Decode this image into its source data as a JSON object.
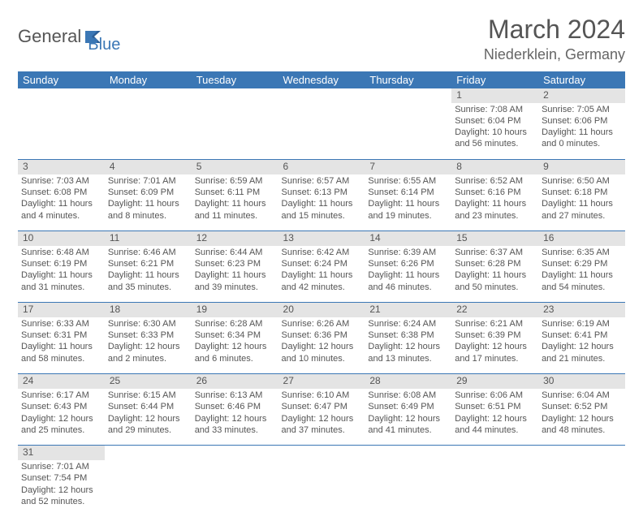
{
  "logo": {
    "part1": "General",
    "part2": "Blue"
  },
  "title": "March 2024",
  "location": "Niederklein, Germany",
  "colors": {
    "headerBg": "#3b77b5",
    "headerText": "#ffffff",
    "dayStripBg": "#e4e4e4",
    "bodyText": "#555555",
    "rowBorder": "#3b77b5"
  },
  "weekdays": [
    "Sunday",
    "Monday",
    "Tuesday",
    "Wednesday",
    "Thursday",
    "Friday",
    "Saturday"
  ],
  "weeks": [
    [
      null,
      null,
      null,
      null,
      null,
      {
        "day": "1",
        "sunrise": "Sunrise: 7:08 AM",
        "sunset": "Sunset: 6:04 PM",
        "daylight": "Daylight: 10 hours and 56 minutes."
      },
      {
        "day": "2",
        "sunrise": "Sunrise: 7:05 AM",
        "sunset": "Sunset: 6:06 PM",
        "daylight": "Daylight: 11 hours and 0 minutes."
      }
    ],
    [
      {
        "day": "3",
        "sunrise": "Sunrise: 7:03 AM",
        "sunset": "Sunset: 6:08 PM",
        "daylight": "Daylight: 11 hours and 4 minutes."
      },
      {
        "day": "4",
        "sunrise": "Sunrise: 7:01 AM",
        "sunset": "Sunset: 6:09 PM",
        "daylight": "Daylight: 11 hours and 8 minutes."
      },
      {
        "day": "5",
        "sunrise": "Sunrise: 6:59 AM",
        "sunset": "Sunset: 6:11 PM",
        "daylight": "Daylight: 11 hours and 11 minutes."
      },
      {
        "day": "6",
        "sunrise": "Sunrise: 6:57 AM",
        "sunset": "Sunset: 6:13 PM",
        "daylight": "Daylight: 11 hours and 15 minutes."
      },
      {
        "day": "7",
        "sunrise": "Sunrise: 6:55 AM",
        "sunset": "Sunset: 6:14 PM",
        "daylight": "Daylight: 11 hours and 19 minutes."
      },
      {
        "day": "8",
        "sunrise": "Sunrise: 6:52 AM",
        "sunset": "Sunset: 6:16 PM",
        "daylight": "Daylight: 11 hours and 23 minutes."
      },
      {
        "day": "9",
        "sunrise": "Sunrise: 6:50 AM",
        "sunset": "Sunset: 6:18 PM",
        "daylight": "Daylight: 11 hours and 27 minutes."
      }
    ],
    [
      {
        "day": "10",
        "sunrise": "Sunrise: 6:48 AM",
        "sunset": "Sunset: 6:19 PM",
        "daylight": "Daylight: 11 hours and 31 minutes."
      },
      {
        "day": "11",
        "sunrise": "Sunrise: 6:46 AM",
        "sunset": "Sunset: 6:21 PM",
        "daylight": "Daylight: 11 hours and 35 minutes."
      },
      {
        "day": "12",
        "sunrise": "Sunrise: 6:44 AM",
        "sunset": "Sunset: 6:23 PM",
        "daylight": "Daylight: 11 hours and 39 minutes."
      },
      {
        "day": "13",
        "sunrise": "Sunrise: 6:42 AM",
        "sunset": "Sunset: 6:24 PM",
        "daylight": "Daylight: 11 hours and 42 minutes."
      },
      {
        "day": "14",
        "sunrise": "Sunrise: 6:39 AM",
        "sunset": "Sunset: 6:26 PM",
        "daylight": "Daylight: 11 hours and 46 minutes."
      },
      {
        "day": "15",
        "sunrise": "Sunrise: 6:37 AM",
        "sunset": "Sunset: 6:28 PM",
        "daylight": "Daylight: 11 hours and 50 minutes."
      },
      {
        "day": "16",
        "sunrise": "Sunrise: 6:35 AM",
        "sunset": "Sunset: 6:29 PM",
        "daylight": "Daylight: 11 hours and 54 minutes."
      }
    ],
    [
      {
        "day": "17",
        "sunrise": "Sunrise: 6:33 AM",
        "sunset": "Sunset: 6:31 PM",
        "daylight": "Daylight: 11 hours and 58 minutes."
      },
      {
        "day": "18",
        "sunrise": "Sunrise: 6:30 AM",
        "sunset": "Sunset: 6:33 PM",
        "daylight": "Daylight: 12 hours and 2 minutes."
      },
      {
        "day": "19",
        "sunrise": "Sunrise: 6:28 AM",
        "sunset": "Sunset: 6:34 PM",
        "daylight": "Daylight: 12 hours and 6 minutes."
      },
      {
        "day": "20",
        "sunrise": "Sunrise: 6:26 AM",
        "sunset": "Sunset: 6:36 PM",
        "daylight": "Daylight: 12 hours and 10 minutes."
      },
      {
        "day": "21",
        "sunrise": "Sunrise: 6:24 AM",
        "sunset": "Sunset: 6:38 PM",
        "daylight": "Daylight: 12 hours and 13 minutes."
      },
      {
        "day": "22",
        "sunrise": "Sunrise: 6:21 AM",
        "sunset": "Sunset: 6:39 PM",
        "daylight": "Daylight: 12 hours and 17 minutes."
      },
      {
        "day": "23",
        "sunrise": "Sunrise: 6:19 AM",
        "sunset": "Sunset: 6:41 PM",
        "daylight": "Daylight: 12 hours and 21 minutes."
      }
    ],
    [
      {
        "day": "24",
        "sunrise": "Sunrise: 6:17 AM",
        "sunset": "Sunset: 6:43 PM",
        "daylight": "Daylight: 12 hours and 25 minutes."
      },
      {
        "day": "25",
        "sunrise": "Sunrise: 6:15 AM",
        "sunset": "Sunset: 6:44 PM",
        "daylight": "Daylight: 12 hours and 29 minutes."
      },
      {
        "day": "26",
        "sunrise": "Sunrise: 6:13 AM",
        "sunset": "Sunset: 6:46 PM",
        "daylight": "Daylight: 12 hours and 33 minutes."
      },
      {
        "day": "27",
        "sunrise": "Sunrise: 6:10 AM",
        "sunset": "Sunset: 6:47 PM",
        "daylight": "Daylight: 12 hours and 37 minutes."
      },
      {
        "day": "28",
        "sunrise": "Sunrise: 6:08 AM",
        "sunset": "Sunset: 6:49 PM",
        "daylight": "Daylight: 12 hours and 41 minutes."
      },
      {
        "day": "29",
        "sunrise": "Sunrise: 6:06 AM",
        "sunset": "Sunset: 6:51 PM",
        "daylight": "Daylight: 12 hours and 44 minutes."
      },
      {
        "day": "30",
        "sunrise": "Sunrise: 6:04 AM",
        "sunset": "Sunset: 6:52 PM",
        "daylight": "Daylight: 12 hours and 48 minutes."
      }
    ],
    [
      {
        "day": "31",
        "sunrise": "Sunrise: 7:01 AM",
        "sunset": "Sunset: 7:54 PM",
        "daylight": "Daylight: 12 hours and 52 minutes."
      },
      null,
      null,
      null,
      null,
      null,
      null
    ]
  ]
}
